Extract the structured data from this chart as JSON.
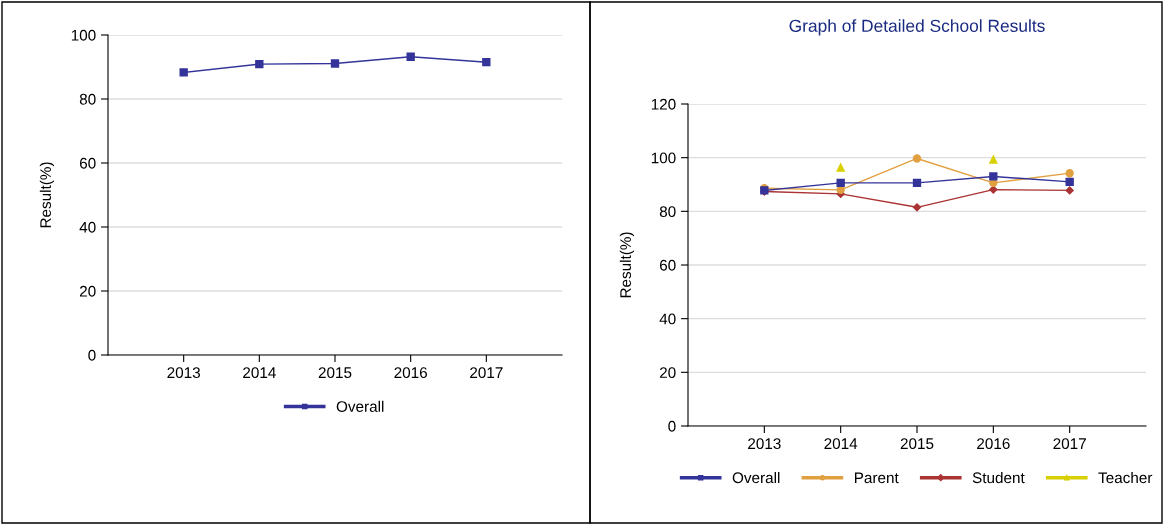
{
  "chart_data": [
    {
      "type": "line",
      "ylabel": "Result(%)",
      "categories": [
        "2013",
        "2014",
        "2015",
        "2016",
        "2017"
      ],
      "ylim": [
        0,
        100
      ],
      "yticks": [
        0,
        20,
        40,
        60,
        80,
        100
      ],
      "grid": "y",
      "legend": "bottom",
      "series": [
        {
          "name": "Overall",
          "color": "#333399",
          "marker": "square",
          "values": [
            88.3,
            90.9,
            91.1,
            93.2,
            91.5
          ]
        }
      ]
    },
    {
      "type": "line",
      "title": "Graph of Detailed School Results",
      "ylabel": "Result(%)",
      "categories": [
        "2013",
        "2014",
        "2015",
        "2016",
        "2017"
      ],
      "ylim": [
        0,
        120
      ],
      "yticks": [
        0,
        20,
        40,
        60,
        80,
        100,
        120
      ],
      "grid": "y",
      "legend": "bottom",
      "series": [
        {
          "name": "Overall",
          "color": "#333399",
          "marker": "square",
          "values": [
            87.8,
            90.6,
            90.6,
            93.0,
            91.0
          ]
        },
        {
          "name": "Parent",
          "color": "#e0a040",
          "marker": "circle",
          "values": [
            88.6,
            88.0,
            99.7,
            90.6,
            94.2
          ]
        },
        {
          "name": "Student",
          "color": "#aa3333",
          "marker": "diamond",
          "values": [
            87.4,
            86.5,
            81.5,
            88.1,
            87.8
          ]
        },
        {
          "name": "Teacher",
          "type": "scatter",
          "color": "#d8d000",
          "marker": "triangle",
          "values": [
            null,
            96.3,
            null,
            99.3,
            null
          ]
        }
      ]
    }
  ]
}
